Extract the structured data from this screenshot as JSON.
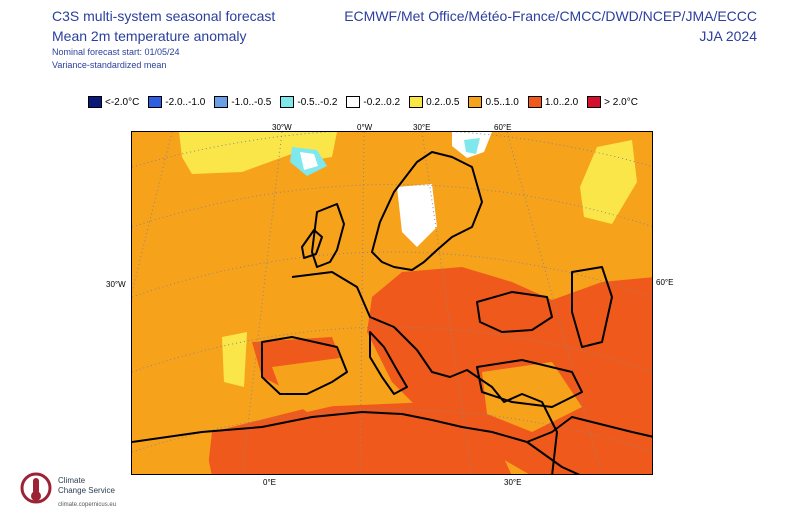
{
  "header": {
    "title_line1": "C3S multi-system seasonal forecast",
    "title_line2": "Mean 2m temperature anomaly",
    "subtitle_line1": "Nominal forecast start: 01/05/24",
    "subtitle_line2": "Variance-standardized mean",
    "centres": "ECMWF/Met Office/Météo-France/CMCC/DWD/NCEP/JMA/ECCC",
    "season": "JJA 2024"
  },
  "legend": {
    "items": [
      {
        "label": "<-2.0°C",
        "color": "#0a1a7a"
      },
      {
        "label": "-2.0..-1.0",
        "color": "#2f5fe0"
      },
      {
        "label": "-1.0..-0.5",
        "color": "#6aa0e8"
      },
      {
        "label": "-0.5..-0.2",
        "color": "#7ee8ec"
      },
      {
        "label": "-0.2..0.2",
        "color": "#ffffff"
      },
      {
        "label": "0.2..0.5",
        "color": "#fbe64a"
      },
      {
        "label": "0.5..1.0",
        "color": "#f7a21b"
      },
      {
        "label": "1.0..2.0",
        "color": "#f0591c"
      },
      {
        "label": "> 2.0°C",
        "color": "#d4102e"
      }
    ]
  },
  "map": {
    "top_labels": [
      "30°W",
      "0°W",
      "30°E",
      "60°E"
    ],
    "side_left": "30°W",
    "side_right": "60°E",
    "bottom_labels": [
      "0°E",
      "30°E"
    ]
  },
  "logo": {
    "line1": "Climate",
    "line2": "Change Service",
    "url": "climate.copernicus.eu"
  }
}
